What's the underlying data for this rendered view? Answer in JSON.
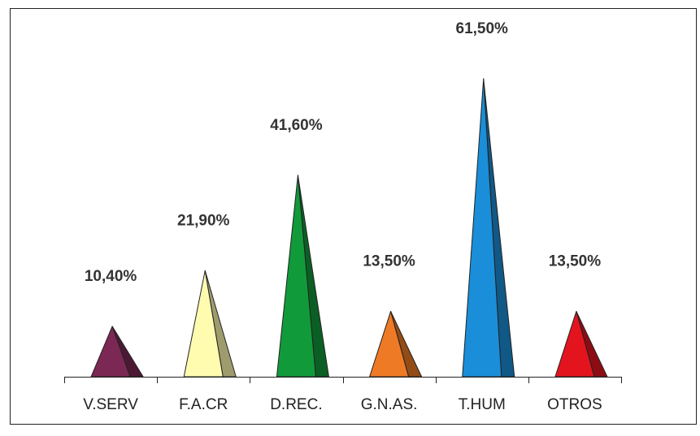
{
  "chart_data": {
    "type": "bar",
    "bar_shape": "pyramid",
    "categories": [
      "V.SERV",
      "F.A.CR",
      "D.REC.",
      "G.N.AS.",
      "T.HUM",
      "OTROS"
    ],
    "values": [
      10.4,
      21.9,
      41.6,
      13.5,
      61.5,
      13.5
    ],
    "value_labels": [
      "10,40%",
      "21,90%",
      "41,60%",
      "13,50%",
      "61,50%",
      "13,50%"
    ],
    "colors": [
      "#7b2855",
      "#fffcb0",
      "#119a3a",
      "#ef7a25",
      "#1a8ed8",
      "#e3141e"
    ],
    "title": "",
    "xlabel": "",
    "ylabel": "",
    "ylim": [
      0,
      70
    ],
    "grid": false,
    "legend": "none"
  }
}
